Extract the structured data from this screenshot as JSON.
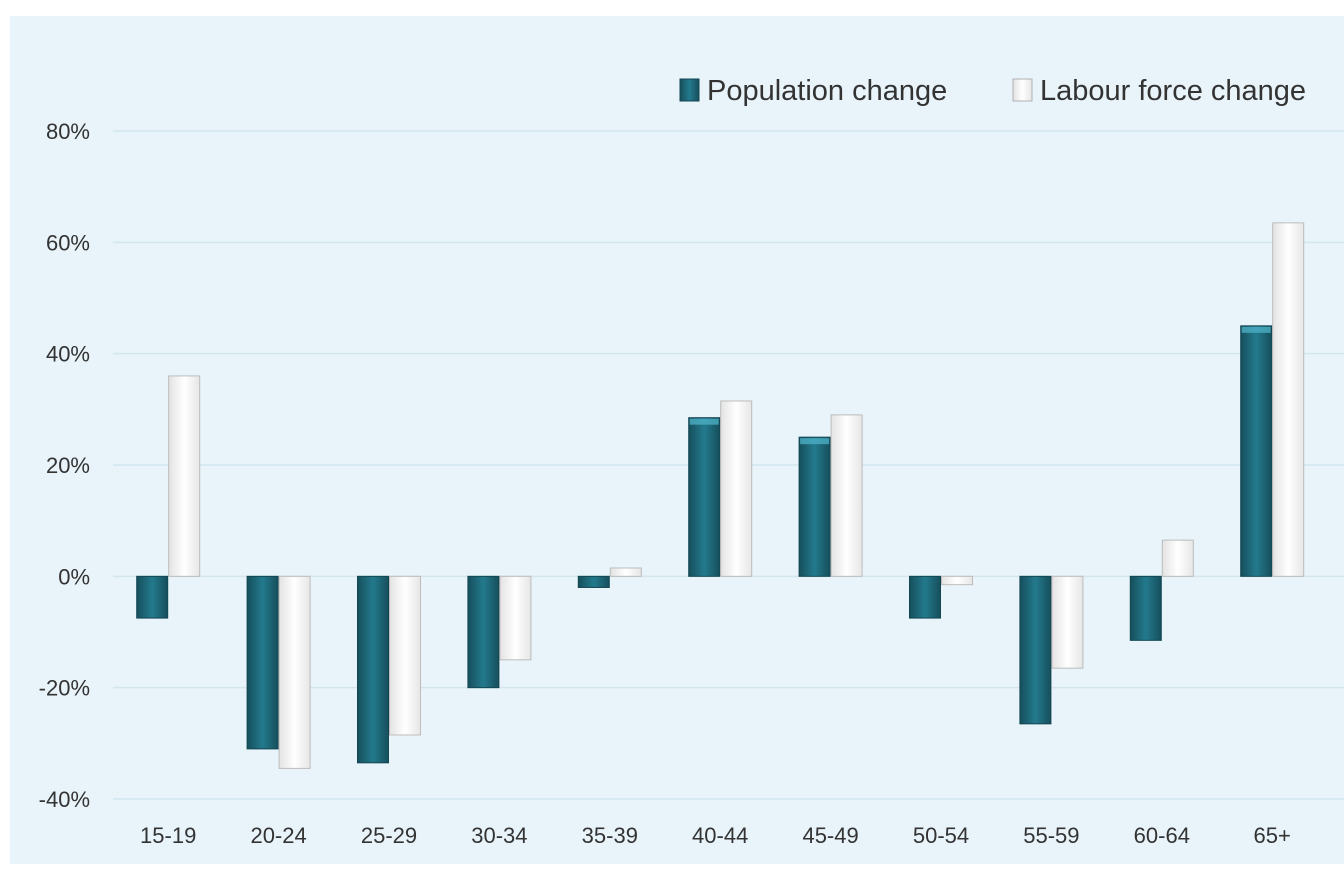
{
  "chart_data": {
    "type": "bar",
    "categories": [
      "15-19",
      "20-24",
      "25-29",
      "30-34",
      "35-39",
      "40-44",
      "45-49",
      "50-54",
      "55-59",
      "60-64",
      "65+"
    ],
    "series": [
      {
        "name": "Population change",
        "color": "#1f6b7d",
        "values": [
          -7.5,
          -31,
          -33.5,
          -20,
          -2,
          28.5,
          25,
          -7.5,
          -26.5,
          -11.5,
          45
        ]
      },
      {
        "name": "Labour force change",
        "color": "#ffffff",
        "values": [
          36,
          -34.5,
          -28.5,
          -15,
          1.5,
          31.5,
          29,
          -1.5,
          -16.5,
          6.5,
          63.5
        ]
      }
    ],
    "y_ticks": [
      "-40%",
      "-20%",
      "0%",
      "20%",
      "40%",
      "60%",
      "80%"
    ],
    "ylim": [
      -40,
      80
    ],
    "grid": true,
    "legend_position": "top-right",
    "background_color": "#e8f4fa"
  }
}
